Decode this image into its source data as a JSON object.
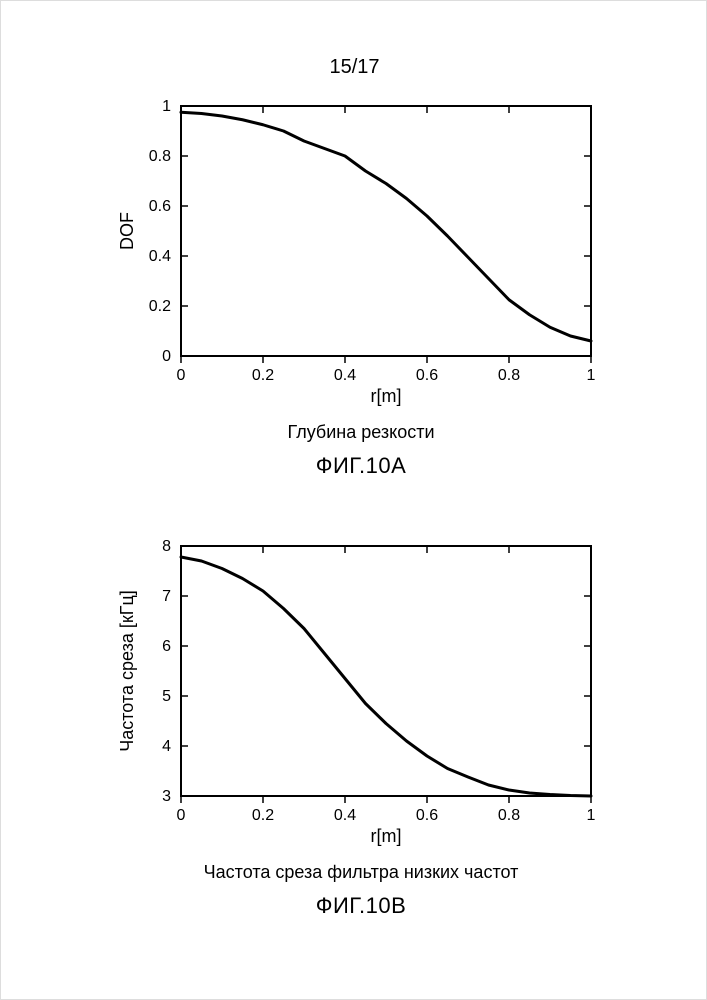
{
  "page_number": "15/17",
  "chart_a": {
    "type": "line",
    "title": "Глубина резкости",
    "fig_label": "ФИГ.10A",
    "xlabel": "r[m]",
    "ylabel": "DOF",
    "xlim": [
      0,
      1
    ],
    "ylim": [
      0,
      1
    ],
    "xticks": [
      0,
      0.2,
      0.4,
      0.6,
      0.8,
      1
    ],
    "yticks": [
      0,
      0.2,
      0.4,
      0.6,
      0.8,
      1
    ],
    "xtick_labels": [
      "0",
      "0.2",
      "0.4",
      "0.6",
      "0.8",
      "1"
    ],
    "ytick_labels": [
      "0",
      "0.2",
      "0.4",
      "0.6",
      "0.8",
      "1"
    ],
    "series": {
      "x": [
        0,
        0.05,
        0.1,
        0.15,
        0.2,
        0.25,
        0.3,
        0.35,
        0.4,
        0.45,
        0.5,
        0.55,
        0.6,
        0.65,
        0.7,
        0.75,
        0.8,
        0.85,
        0.9,
        0.95,
        1.0
      ],
      "y": [
        0.975,
        0.97,
        0.96,
        0.945,
        0.925,
        0.9,
        0.86,
        0.83,
        0.8,
        0.74,
        0.69,
        0.63,
        0.56,
        0.48,
        0.395,
        0.31,
        0.225,
        0.165,
        0.115,
        0.08,
        0.06
      ]
    },
    "line_color": "#000000",
    "line_width": 3,
    "background_color": "#ffffff",
    "border_color": "#000000",
    "tick_color": "#000000",
    "label_fontsize": 18,
    "tick_fontsize": 16,
    "title_fontsize": 18
  },
  "chart_b": {
    "type": "line",
    "title": "Частота среза фильтра низких частот",
    "fig_label": "ФИГ.10B",
    "xlabel": "r[m]",
    "ylabel": "Частота среза [кГц]",
    "xlim": [
      0,
      1
    ],
    "ylim": [
      3,
      8
    ],
    "xticks": [
      0,
      0.2,
      0.4,
      0.6,
      0.8,
      1
    ],
    "yticks": [
      3,
      4,
      5,
      6,
      7,
      8
    ],
    "xtick_labels": [
      "0",
      "0.2",
      "0.4",
      "0.6",
      "0.8",
      "1"
    ],
    "ytick_labels": [
      "3",
      "4",
      "5",
      "6",
      "7",
      "8"
    ],
    "series": {
      "x": [
        0,
        0.05,
        0.1,
        0.15,
        0.2,
        0.25,
        0.3,
        0.35,
        0.4,
        0.45,
        0.5,
        0.55,
        0.6,
        0.65,
        0.7,
        0.75,
        0.8,
        0.85,
        0.9,
        0.95,
        1.0
      ],
      "y": [
        7.78,
        7.7,
        7.55,
        7.35,
        7.1,
        6.75,
        6.35,
        5.85,
        5.35,
        4.85,
        4.45,
        4.1,
        3.8,
        3.55,
        3.38,
        3.22,
        3.12,
        3.06,
        3.03,
        3.01,
        3.0
      ]
    },
    "line_color": "#000000",
    "line_width": 3,
    "background_color": "#ffffff",
    "border_color": "#000000",
    "tick_color": "#000000",
    "label_fontsize": 18,
    "tick_fontsize": 16,
    "title_fontsize": 18
  }
}
